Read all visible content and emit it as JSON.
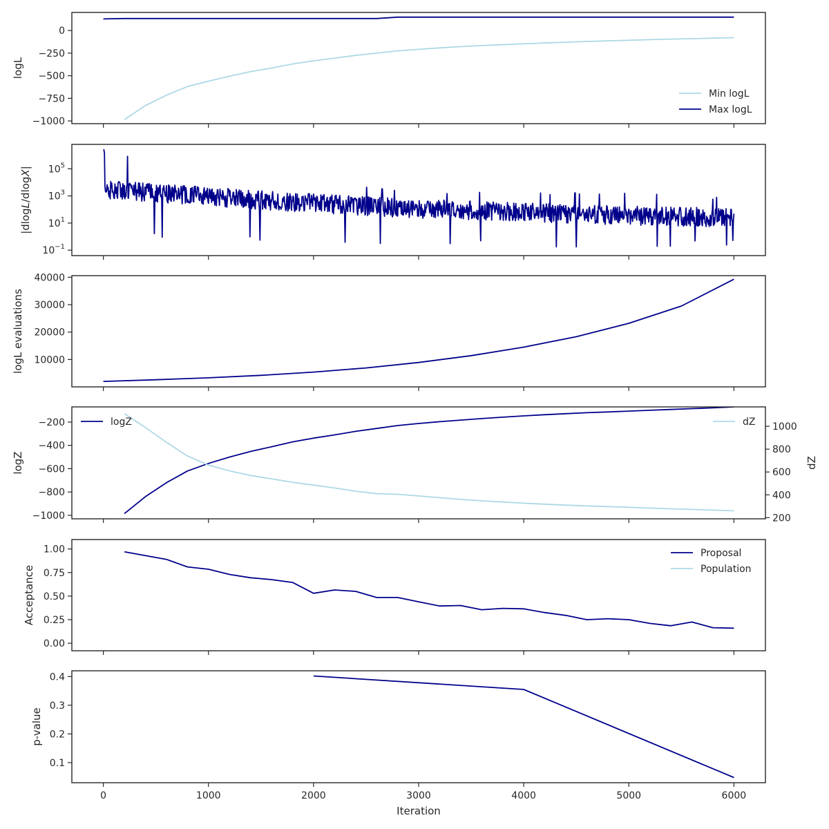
{
  "colors": {
    "dark": "#00008b",
    "light": "#add8e6",
    "axis": "#262626"
  },
  "figure": {
    "xlabel": "Iteration"
  },
  "chart_data": [
    {
      "type": "line",
      "ylabel": "logL",
      "xlim": [
        -300,
        6300
      ],
      "ylim": [
        -1030,
        200
      ],
      "xticks": [
        0,
        1000,
        2000,
        3000,
        4000,
        5000,
        6000
      ],
      "yticks": [
        0,
        -250,
        -500,
        -750,
        -1000
      ],
      "ytick_labels": [
        "0",
        "−250",
        "−500",
        "−750",
        "−1000"
      ],
      "legend": "lower-right",
      "series": [
        {
          "name": "Min logL",
          "color": "light",
          "x": [
            200,
            400,
            600,
            800,
            1000,
            1200,
            1400,
            1600,
            1800,
            2000,
            2200,
            2400,
            2600,
            2800,
            3000,
            3200,
            3400,
            3600,
            3800,
            4000,
            4200,
            4400,
            4600,
            4800,
            5000,
            5200,
            5400,
            5600,
            5800,
            6000
          ],
          "y": [
            -985,
            -830,
            -715,
            -620,
            -560,
            -505,
            -455,
            -415,
            -370,
            -335,
            -305,
            -275,
            -250,
            -225,
            -208,
            -192,
            -178,
            -167,
            -157,
            -147,
            -138,
            -129,
            -121,
            -114,
            -108,
            -101,
            -95,
            -90,
            -84,
            -79
          ]
        },
        {
          "name": "Max logL",
          "color": "dark",
          "x": [
            0,
            200,
            2600,
            2800,
            6000
          ],
          "y": [
            128,
            133,
            133,
            148,
            148
          ]
        }
      ]
    },
    {
      "type": "line",
      "ylabel": "|dlogL/dlogX|",
      "yscale": "log",
      "xlim": [
        -300,
        6300
      ],
      "ylim": [
        -1.4,
        6.8
      ],
      "xticks": [
        0,
        1000,
        2000,
        3000,
        4000,
        5000,
        6000
      ],
      "yticks": [
        5,
        3,
        1,
        -1
      ],
      "ytick_labels": [
        "10^5",
        "10^3",
        "10^1",
        "10^−1"
      ],
      "series": [
        {
          "name": "",
          "color": "dark",
          "x": [
            0,
            1000,
            2000,
            3000,
            4000,
            5000,
            6000
          ],
          "center": [
            3.5,
            2.95,
            2.45,
            2.05,
            1.8,
            1.55,
            1.4
          ],
          "high": [
            6.5,
            4.8,
            4.1,
            3.5,
            3.4,
            3.2,
            3.0
          ],
          "low": [
            -0.1,
            -0.3,
            -0.6,
            -0.5,
            -0.9,
            -1.0,
            -0.6
          ]
        }
      ]
    },
    {
      "type": "line",
      "ylabel": "logL evaluations",
      "xlim": [
        -300,
        6300
      ],
      "ylim": [
        0,
        40600
      ],
      "xticks": [
        0,
        1000,
        2000,
        3000,
        4000,
        5000,
        6000
      ],
      "yticks": [
        10000,
        20000,
        30000,
        40000
      ],
      "ytick_labels": [
        "10000",
        "20000",
        "30000",
        "40000"
      ],
      "series": [
        {
          "name": "",
          "color": "dark",
          "x": [
            0,
            500,
            1000,
            1500,
            2000,
            2500,
            3000,
            3500,
            4000,
            4500,
            5000,
            5500,
            6000
          ],
          "y": [
            2000,
            2600,
            3300,
            4200,
            5400,
            6900,
            8900,
            11400,
            14500,
            18300,
            23200,
            29500,
            39300
          ]
        }
      ]
    },
    {
      "type": "line",
      "ylabel": "logZ",
      "ylabel_right": "dZ",
      "xlim": [
        -300,
        6300
      ],
      "ylim": [
        -1030,
        -70
      ],
      "ylim_right": [
        190,
        1170
      ],
      "xticks": [
        0,
        1000,
        2000,
        3000,
        4000,
        5000,
        6000
      ],
      "yticks": [
        -200,
        -400,
        -600,
        -800,
        -1000
      ],
      "ytick_labels": [
        "−200",
        "−400",
        "−600",
        "−800",
        "−1000"
      ],
      "yticks_right": [
        1000,
        800,
        600,
        400,
        200
      ],
      "ytick_labels_right": [
        "1000",
        "800",
        "600",
        "400",
        "200"
      ],
      "series": [
        {
          "name": "logZ",
          "color": "dark",
          "axis": "left",
          "legend": "upper-left",
          "x": [
            200,
            400,
            600,
            800,
            1000,
            1200,
            1400,
            1600,
            1800,
            2000,
            2200,
            2400,
            2600,
            2800,
            3000,
            3200,
            3400,
            3600,
            3800,
            4000,
            4200,
            4400,
            4600,
            4800,
            5000,
            5200,
            5400,
            5600,
            5800,
            6000
          ],
          "y": [
            -985,
            -840,
            -720,
            -620,
            -555,
            -500,
            -452,
            -412,
            -370,
            -338,
            -310,
            -280,
            -255,
            -230,
            -212,
            -197,
            -183,
            -170,
            -158,
            -147,
            -137,
            -128,
            -120,
            -113,
            -106,
            -99,
            -92,
            -85,
            -78,
            -70
          ]
        },
        {
          "name": "dZ",
          "color": "light",
          "axis": "right",
          "legend": "upper-right",
          "x": [
            200,
            400,
            600,
            800,
            1000,
            1200,
            1400,
            1600,
            1800,
            2000,
            2200,
            2400,
            2600,
            2800,
            3000,
            3200,
            3400,
            3600,
            3800,
            4000,
            4200,
            4400,
            4600,
            4800,
            5000,
            5200,
            5400,
            5600,
            5800,
            6000
          ],
          "y": [
            1110,
            990,
            860,
            740,
            660,
            610,
            570,
            540,
            510,
            485,
            460,
            432,
            410,
            405,
            390,
            375,
            360,
            348,
            337,
            327,
            318,
            310,
            303,
            297,
            291,
            284,
            278,
            272,
            266,
            260
          ]
        }
      ]
    },
    {
      "type": "line",
      "ylabel": "Acceptance",
      "xlim": [
        -300,
        6300
      ],
      "ylim": [
        -0.08,
        1.1
      ],
      "xticks": [
        0,
        1000,
        2000,
        3000,
        4000,
        5000,
        6000
      ],
      "yticks": [
        1.0,
        0.75,
        0.5,
        0.25,
        0.0
      ],
      "ytick_labels": [
        "1.00",
        "0.75",
        "0.50",
        "0.25",
        "0.00"
      ],
      "legend": "upper-right",
      "series": [
        {
          "name": "Proposal",
          "color": "dark",
          "x": [
            200,
            400,
            600,
            800,
            1000,
            1200,
            1400,
            1600,
            1800,
            2000,
            2200,
            2400,
            2600,
            2800,
            3000,
            3200,
            3400,
            3600,
            3800,
            4000,
            4200,
            4400,
            4600,
            4800,
            5000,
            5200,
            5400,
            5600,
            5800,
            6000
          ],
          "y": [
            0.97,
            0.93,
            0.89,
            0.81,
            0.785,
            0.73,
            0.695,
            0.675,
            0.645,
            0.53,
            0.565,
            0.55,
            0.485,
            0.485,
            0.44,
            0.395,
            0.4,
            0.355,
            0.37,
            0.365,
            0.325,
            0.295,
            0.25,
            0.26,
            0.25,
            0.21,
            0.185,
            0.225,
            0.165,
            0.16
          ]
        },
        {
          "name": "Population",
          "color": "light",
          "x": [],
          "y": []
        }
      ]
    },
    {
      "type": "line",
      "ylabel": "p-value",
      "xlim": [
        -300,
        6300
      ],
      "ylim": [
        0.03,
        0.42
      ],
      "xticks": [
        0,
        1000,
        2000,
        3000,
        4000,
        5000,
        6000
      ],
      "xtick_labels": [
        "0",
        "1000",
        "2000",
        "3000",
        "4000",
        "5000",
        "6000"
      ],
      "yticks": [
        0.4,
        0.3,
        0.2,
        0.1
      ],
      "ytick_labels": [
        "0.4",
        "0.3",
        "0.2",
        "0.1"
      ],
      "series": [
        {
          "name": "",
          "color": "dark",
          "x": [
            2000,
            4000,
            6000
          ],
          "y": [
            0.402,
            0.355,
            0.048
          ]
        }
      ]
    }
  ]
}
